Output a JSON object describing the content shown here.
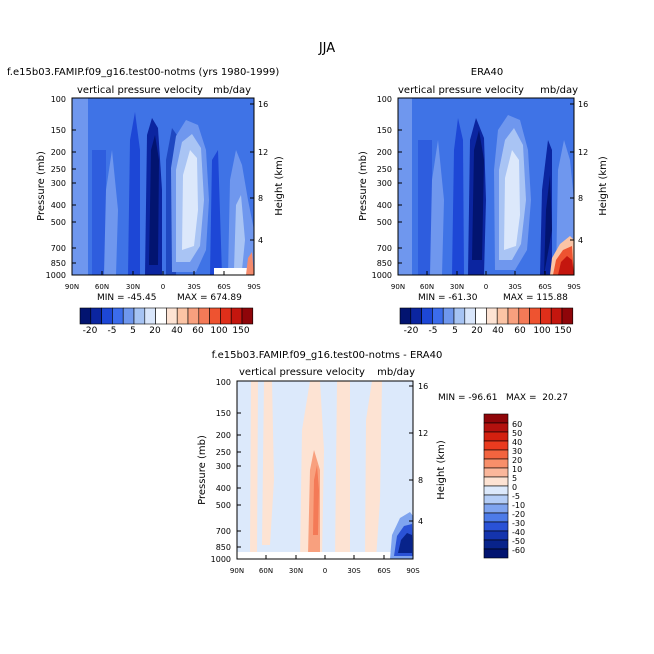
{
  "figure": {
    "title": "JJA",
    "variable_label": "vertical pressure velocity",
    "units": "mb/day",
    "y_left_label": "Pressure (mb)",
    "y_right_label": "Height (km)",
    "pressure_ticks": [
      "100",
      "150",
      "200",
      "250",
      "300",
      "400",
      "500",
      "700",
      "850",
      "1000"
    ],
    "height_ticks": [
      "16",
      "12",
      "8",
      "4"
    ],
    "lat_ticks": [
      "90N",
      "60N",
      "30N",
      "0",
      "30S",
      "60S",
      "90S"
    ]
  },
  "chart_data": [
    {
      "id": "model",
      "type": "heatmap",
      "title": "f.e15b03.FAMIP.f09_g16.test00-notms (yrs 1980-1999)",
      "subtitle": "vertical pressure velocity",
      "units": "mb/day",
      "xlabel": "",
      "ylabel": "Pressure (mb)",
      "y2label": "Height (km)",
      "x_ticks": [
        "90N",
        "60N",
        "30N",
        "0",
        "30S",
        "60S",
        "90S"
      ],
      "y_ticks": [
        100,
        150,
        200,
        250,
        300,
        400,
        500,
        700,
        850,
        1000
      ],
      "y2_ticks": [
        16,
        12,
        8,
        4
      ],
      "ylim": [
        1000,
        100
      ],
      "min_label": "MIN = -45.45",
      "max_label": "MAX = 674.89",
      "colorbar": {
        "labels": [
          "-20",
          "-5",
          "5",
          "20",
          "40",
          "60",
          "100",
          "150"
        ]
      }
    },
    {
      "id": "obs",
      "type": "heatmap",
      "title": "ERA40",
      "subtitle": "vertical pressure velocity",
      "units": "mb/day",
      "xlabel": "",
      "ylabel": "Pressure (mb)",
      "y2label": "Height (km)",
      "x_ticks": [
        "90N",
        "60N",
        "30N",
        "0",
        "30S",
        "60S",
        "90S"
      ],
      "y_ticks": [
        100,
        150,
        200,
        250,
        300,
        400,
        500,
        700,
        850,
        1000
      ],
      "y2_ticks": [
        16,
        12,
        8,
        4
      ],
      "ylim": [
        1000,
        100
      ],
      "min_label": "MIN = -61.30",
      "max_label": "MAX = 115.88",
      "colorbar": {
        "labels": [
          "-20",
          "-5",
          "5",
          "20",
          "40",
          "60",
          "100",
          "150"
        ]
      }
    },
    {
      "id": "diff",
      "type": "heatmap",
      "title": "f.e15b03.FAMIP.f09_g16.test00-notms - ERA40",
      "subtitle": "vertical pressure velocity",
      "units": "mb/day",
      "xlabel": "",
      "ylabel": "Pressure (mb)",
      "y2label": "Height (km)",
      "x_ticks": [
        "90N",
        "60N",
        "30N",
        "0",
        "30S",
        "60S",
        "90S"
      ],
      "y_ticks": [
        100,
        150,
        200,
        250,
        300,
        400,
        500,
        700,
        850,
        1000
      ],
      "y2_ticks": [
        16,
        12,
        8,
        4
      ],
      "ylim": [
        1000,
        100
      ],
      "minmax_label": "MIN = -96.61   MAX =  20.27",
      "colorbar": {
        "labels": [
          "60",
          "50",
          "40",
          "30",
          "20",
          "10",
          "5",
          "0",
          "-5",
          "-10",
          "-20",
          "-30",
          "-40",
          "-50",
          "-60"
        ]
      }
    }
  ],
  "colors": {
    "base_blue": "#3f73e6",
    "light_blue": "#6f97ee",
    "dark_blue": "#1236b0",
    "navy": "#021470",
    "ascent_light": "#a9c4f4",
    "ascent_pale": "#dce8fb",
    "diff_base": "#dce9fb",
    "diff_peach": "#fde3d3",
    "diff_salmon": "#f48b6d",
    "red": "#e8461f",
    "dark_red": "#b3110e",
    "main_bar": [
      "#021470",
      "#0b25a0",
      "#1d47d6",
      "#3b6cec",
      "#6f97ee",
      "#a6c3f3",
      "#d9e6fb",
      "#ffffff",
      "#fde3d3",
      "#fbc4a5",
      "#f8a07e",
      "#f47a57",
      "#ee5330",
      "#e02f1a",
      "#c4160e",
      "#8f0509"
    ],
    "diff_bar": [
      "#8f0509",
      "#b3110e",
      "#d3200f",
      "#ea3b1f",
      "#f3643f",
      "#f88f6a",
      "#fbb79b",
      "#fde3d3",
      "#dce9fb",
      "#b4cdf6",
      "#7fa4ef",
      "#4d7be8",
      "#2a52d6",
      "#1434ad",
      "#08238a",
      "#021470"
    ]
  }
}
